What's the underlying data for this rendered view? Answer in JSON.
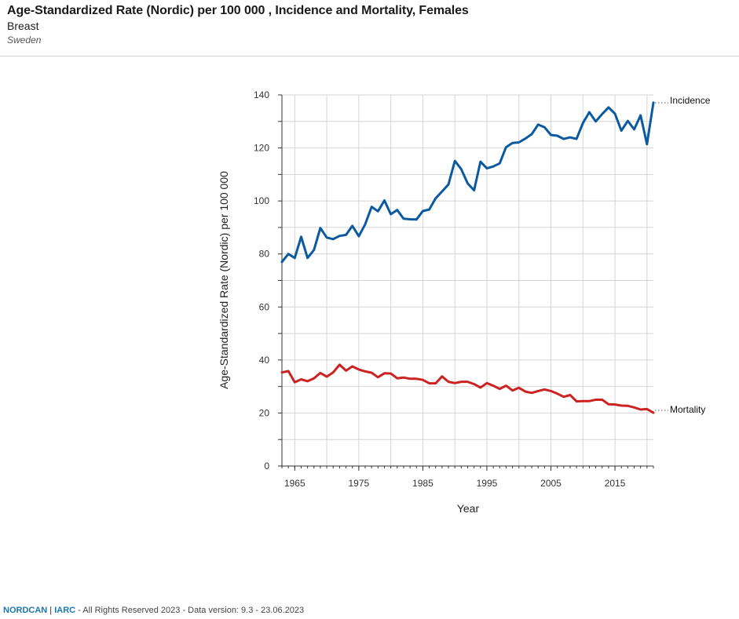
{
  "header": {
    "title": "Age-Standardized Rate (Nordic) per 100 000 , Incidence and Mortality, Females",
    "subtitle": "Breast",
    "country": "Sweden"
  },
  "footer": {
    "brand1": "NORDCAN",
    "separator": "|",
    "brand2": "IARC",
    "rest": "- All Rights Reserved 2023 - Data version: 9.3 - 23.06.2023"
  },
  "colors": {
    "incidence": "#0b5aa0",
    "mortality": "#cc2222",
    "grid": "#d4d4d4",
    "axis": "#333333"
  },
  "chart_data": {
    "type": "line",
    "title": "Age-Standardized Rate (Nordic) per 100 000 , Incidence and Mortality, Females",
    "xlabel": "Year",
    "ylabel": "Age-Standardized Rate (Nordic) per 100 000",
    "xlim": [
      1963,
      2021
    ],
    "ylim": [
      0,
      140
    ],
    "xticks": [
      1965,
      1975,
      1985,
      1995,
      2005,
      2015
    ],
    "yticks": [
      0,
      20,
      40,
      60,
      80,
      100,
      120,
      140
    ],
    "grid": true,
    "x": [
      1963,
      1964,
      1965,
      1966,
      1967,
      1968,
      1969,
      1970,
      1971,
      1972,
      1973,
      1974,
      1975,
      1976,
      1977,
      1978,
      1979,
      1980,
      1981,
      1982,
      1983,
      1984,
      1985,
      1986,
      1987,
      1988,
      1989,
      1990,
      1991,
      1992,
      1993,
      1994,
      1995,
      1996,
      1997,
      1998,
      1999,
      2000,
      2001,
      2002,
      2003,
      2004,
      2005,
      2006,
      2007,
      2008,
      2009,
      2010,
      2011,
      2012,
      2013,
      2014,
      2015,
      2016,
      2017,
      2018,
      2019,
      2020,
      2021
    ],
    "series": [
      {
        "name": "Incidence",
        "values": [
          77.0,
          80.0,
          78.5,
          86.5,
          78.5,
          81.5,
          89.8,
          86.2,
          85.6,
          86.8,
          87.2,
          90.6,
          86.7,
          91.2,
          97.8,
          96.1,
          100.2,
          95.0,
          96.6,
          93.3,
          93.1,
          93.0,
          96.2,
          96.8,
          101.0,
          103.6,
          106.2,
          115.1,
          112.0,
          106.6,
          104.0,
          114.8,
          112.3,
          113.0,
          114.2,
          120.3,
          121.9,
          122.1,
          123.5,
          125.2,
          128.8,
          127.8,
          124.9,
          124.6,
          123.4,
          124.0,
          123.4,
          129.4,
          133.5,
          130.0,
          132.8,
          135.3,
          132.9,
          126.5,
          130.2,
          127.0,
          132.3,
          121.4,
          137.1
        ]
      },
      {
        "name": "Mortality",
        "values": [
          35.3,
          35.8,
          31.6,
          32.7,
          32.0,
          33.1,
          35.1,
          33.7,
          35.3,
          38.2,
          36.0,
          37.6,
          36.4,
          35.7,
          35.2,
          33.5,
          35.0,
          34.9,
          33.1,
          33.4,
          32.9,
          32.9,
          32.5,
          31.2,
          31.2,
          33.8,
          31.8,
          31.3,
          31.8,
          31.8,
          30.9,
          29.6,
          31.3,
          30.3,
          29.1,
          30.3,
          28.5,
          29.5,
          28.1,
          27.6,
          28.3,
          28.9,
          28.3,
          27.3,
          26.1,
          26.8,
          24.4,
          24.5,
          24.5,
          25.0,
          25.0,
          23.3,
          23.2,
          22.8,
          22.7,
          22.1,
          21.3,
          21.5,
          20.1
        ]
      }
    ]
  }
}
